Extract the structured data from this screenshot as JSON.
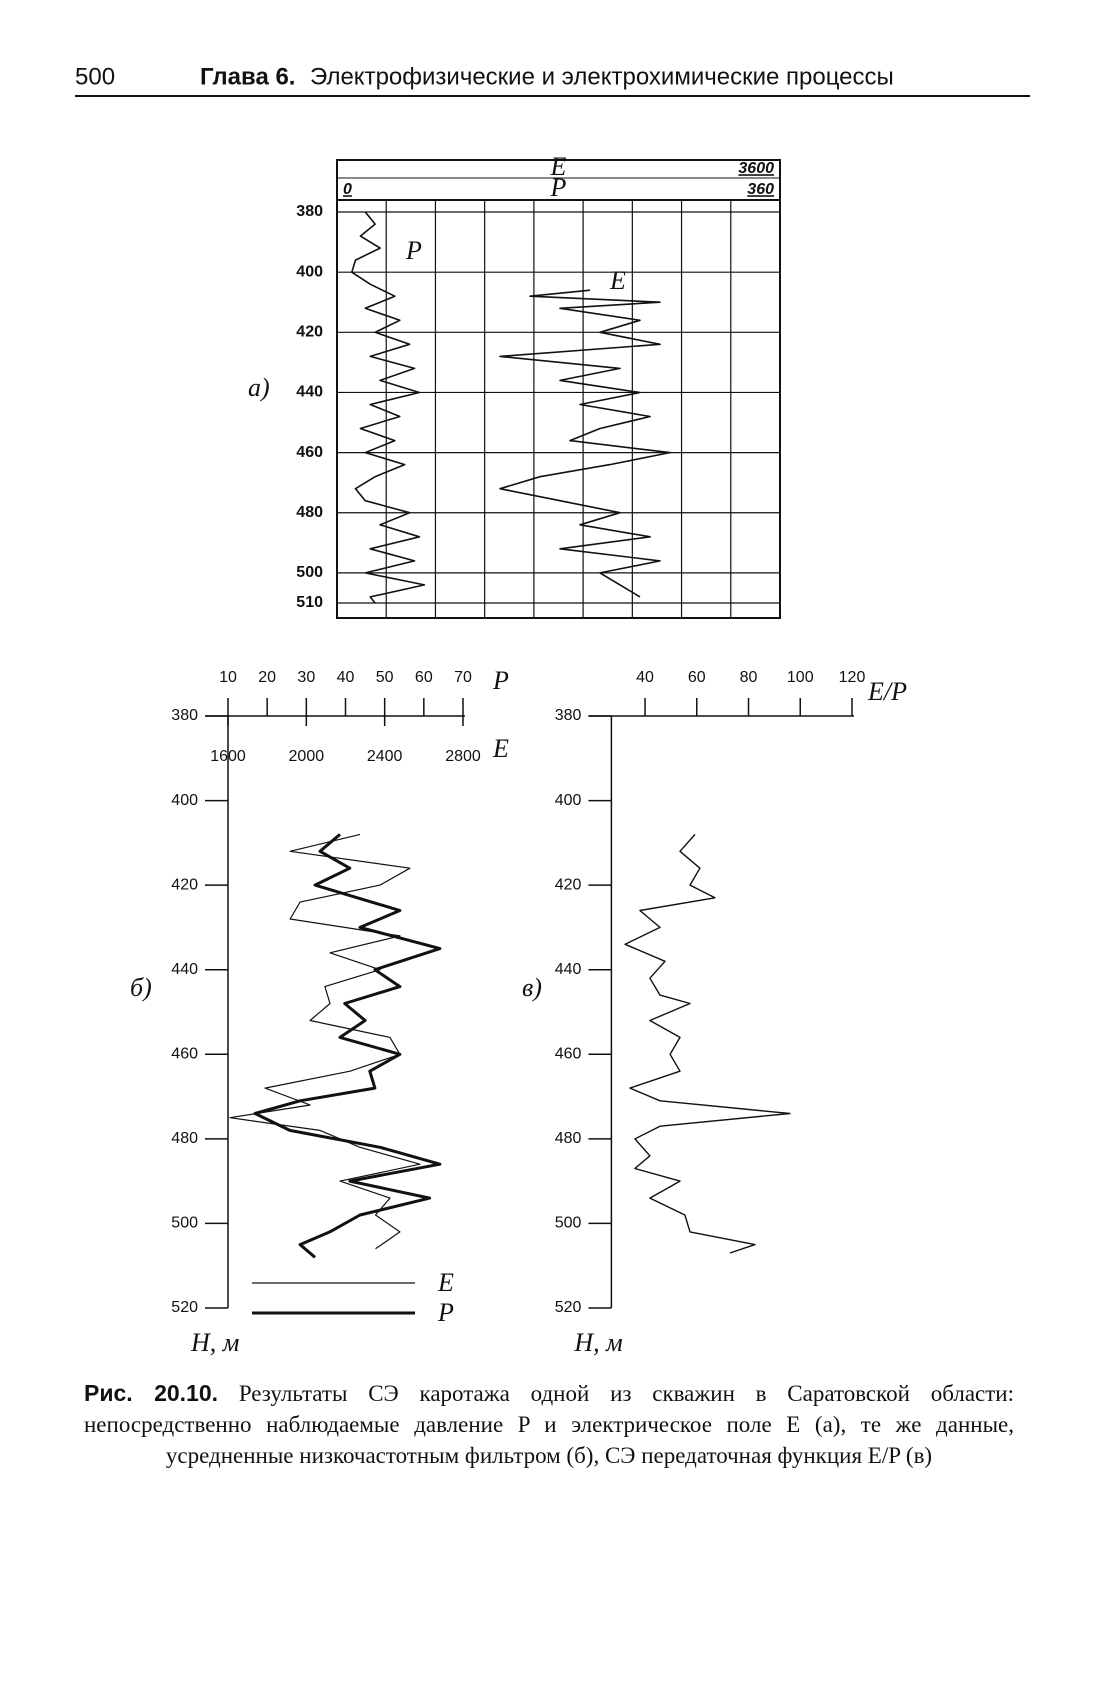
{
  "header": {
    "page_number": "500",
    "chapter": "Глава 6.",
    "title": "Электрофизические и электрохимические процессы"
  },
  "chart_data": [
    {
      "type": "line",
      "label": "а)",
      "xlim": [
        376,
        515
      ],
      "xticks": [
        380,
        400,
        420,
        440,
        460,
        480,
        500,
        510
      ],
      "ylim": [
        0,
        360
      ],
      "yticks": [
        0,
        360
      ],
      "y2lim": [
        0,
        3600
      ],
      "y2ticks": [
        3600
      ],
      "series": [
        {
          "name": "P",
          "color": "#111111",
          "line_width": 1.6,
          "x": [
            380,
            384,
            388,
            392,
            396,
            400,
            404,
            408,
            412,
            416,
            420,
            424,
            428,
            432,
            436,
            440,
            444,
            448,
            452,
            456,
            460,
            464,
            468,
            472,
            476,
            480,
            484,
            488,
            492,
            496,
            500,
            504,
            508,
            510
          ],
          "values": [
            23,
            31,
            19,
            35,
            15,
            12,
            27,
            47,
            23,
            51,
            31,
            59,
            27,
            63,
            35,
            67,
            27,
            51,
            19,
            47,
            23,
            55,
            31,
            15,
            23,
            59,
            35,
            67,
            27,
            63,
            23,
            71,
            27,
            31
          ]
        },
        {
          "name": "E",
          "color": "#111111",
          "line_width": 1.6,
          "axis": "y2",
          "x": [
            406,
            408,
            410,
            412,
            416,
            420,
            424,
            428,
            432,
            436,
            440,
            444,
            448,
            452,
            456,
            460,
            464,
            468,
            472,
            476,
            480,
            484,
            488,
            492,
            496,
            500,
            504,
            508
          ],
          "values": [
            2056,
            1568,
            2625,
            1812,
            2462,
            2137,
            2625,
            1325,
            2300,
            1812,
            2462,
            1975,
            2544,
            2137,
            1893,
            2706,
            2218,
            1650,
            1325,
            1812,
            2300,
            1975,
            2544,
            1812,
            2625,
            2137,
            2300,
            2462
          ]
        }
      ]
    },
    {
      "type": "line",
      "label": "б)",
      "xlabel": "H, м",
      "ylabel": "P",
      "y2label": "E",
      "xlim": [
        380,
        520
      ],
      "xticks": [
        380,
        400,
        420,
        440,
        460,
        480,
        500,
        520
      ],
      "ylim": [
        10,
        70
      ],
      "yticks": [
        10,
        20,
        30,
        40,
        50,
        60,
        70
      ],
      "y2lim": [
        1600,
        2800
      ],
      "y2ticks": [
        1600,
        2000,
        2400,
        2800
      ],
      "series": [
        {
          "name": "E",
          "color": "#111111",
          "line_width": 1.2,
          "axis": "y2",
          "x": [
            408,
            412,
            416,
            420,
            424,
            428,
            432,
            436,
            440,
            444,
            448,
            452,
            456,
            460,
            464,
            468,
            472,
            475,
            478,
            482,
            486,
            490,
            494,
            498,
            502,
            506
          ],
          "values": [
            2274,
            1917,
            2529,
            2376,
            1968,
            1917,
            2478,
            2121,
            2376,
            2095,
            2121,
            2019,
            2427,
            2478,
            2223,
            1789,
            2019,
            1610,
            2070,
            2274,
            2580,
            2172,
            2427,
            2353,
            2478,
            2353
          ]
        },
        {
          "name": "P",
          "color": "#111111",
          "line_width": 3,
          "x": [
            408,
            412,
            416,
            420,
            426,
            430,
            435,
            440,
            444,
            448,
            452,
            456,
            460,
            464,
            468,
            471,
            474,
            478,
            482,
            486,
            490,
            494,
            498,
            502,
            505,
            508
          ],
          "values": [
            38.6,
            33.5,
            41.1,
            32.2,
            53.9,
            43.7,
            64.1,
            47.5,
            53.9,
            39.8,
            45,
            38.6,
            53.9,
            46.2,
            47.5,
            28.4,
            16.9,
            25.8,
            48.8,
            64.1,
            41.1,
            61.5,
            43.7,
            36,
            28.4,
            32.2
          ]
        }
      ]
    },
    {
      "type": "line",
      "label": "в)",
      "xlabel": "H, м",
      "ylabel": "E/P",
      "xlim": [
        380,
        520
      ],
      "xticks": [
        380,
        400,
        420,
        440,
        460,
        480,
        500,
        520
      ],
      "ylim": [
        27,
        120
      ],
      "yticks": [
        40,
        60,
        80,
        100,
        120
      ],
      "series": [
        {
          "name": "E/P",
          "color": "#111111",
          "line_width": 1.4,
          "x": [
            408,
            412,
            416,
            420,
            423,
            426,
            430,
            434,
            438,
            442,
            446,
            448,
            452,
            456,
            460,
            464,
            468,
            471,
            474,
            477,
            480,
            484,
            487,
            490,
            494,
            498,
            502,
            505,
            507
          ],
          "values": [
            59.3,
            53.5,
            61.2,
            57.4,
            67,
            38,
            45.8,
            32.3,
            47.7,
            41.9,
            45.8,
            57.4,
            41.9,
            53.5,
            49.7,
            53.5,
            34.2,
            45.8,
            96,
            45.8,
            36.1,
            41.9,
            36.1,
            53.5,
            41.9,
            55.4,
            57.4,
            82.5,
            72.8
          ]
        }
      ]
    }
  ],
  "caption": {
    "label": "Рис. 20.10.",
    "text": "Результаты СЭ каротажа одной из скважин в Саратовской области: непосредственно наблюдаемые давление P и электрическое поле E (а), те же данные, усредненные низкочастотным фильтром (б), СЭ передаточная функция E/P (в)"
  }
}
